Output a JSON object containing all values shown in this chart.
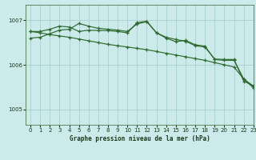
{
  "title": "Graphe pression niveau de la mer (hPa)",
  "bg_color": "#cceaea",
  "grid_color": "#aad4d4",
  "line_color": "#2d6a2d",
  "xlim": [
    -0.5,
    23
  ],
  "ylim": [
    1004.65,
    1007.35
  ],
  "yticks": [
    1005,
    1006,
    1007
  ],
  "xticks": [
    0,
    1,
    2,
    3,
    4,
    5,
    6,
    7,
    8,
    9,
    10,
    11,
    12,
    13,
    14,
    15,
    16,
    17,
    18,
    19,
    20,
    21,
    22,
    23
  ],
  "s1": [
    1006.75,
    1006.75,
    1006.8,
    1006.87,
    1006.85,
    1006.75,
    1006.78,
    1006.77,
    1006.77,
    1006.75,
    1006.72,
    1006.95,
    1006.98,
    1006.72,
    1006.6,
    1006.52,
    1006.55,
    1006.45,
    1006.42,
    1006.12,
    1006.1,
    1006.1,
    1005.68,
    1005.52
  ],
  "s2": [
    1006.6,
    1006.62,
    1006.7,
    1006.78,
    1006.8,
    1006.93,
    1006.87,
    1006.82,
    1006.8,
    1006.78,
    1006.75,
    1006.92,
    1006.97,
    1006.72,
    1006.62,
    1006.57,
    1006.53,
    1006.43,
    1006.4,
    1006.13,
    1006.12,
    1006.12,
    1005.63,
    1005.53
  ],
  "s3": [
    1006.75,
    1006.72,
    1006.68,
    1006.65,
    1006.62,
    1006.58,
    1006.54,
    1006.5,
    1006.46,
    1006.43,
    1006.4,
    1006.37,
    1006.34,
    1006.3,
    1006.26,
    1006.22,
    1006.18,
    1006.14,
    1006.1,
    1006.05,
    1006.0,
    1005.95,
    1005.68,
    1005.48
  ]
}
